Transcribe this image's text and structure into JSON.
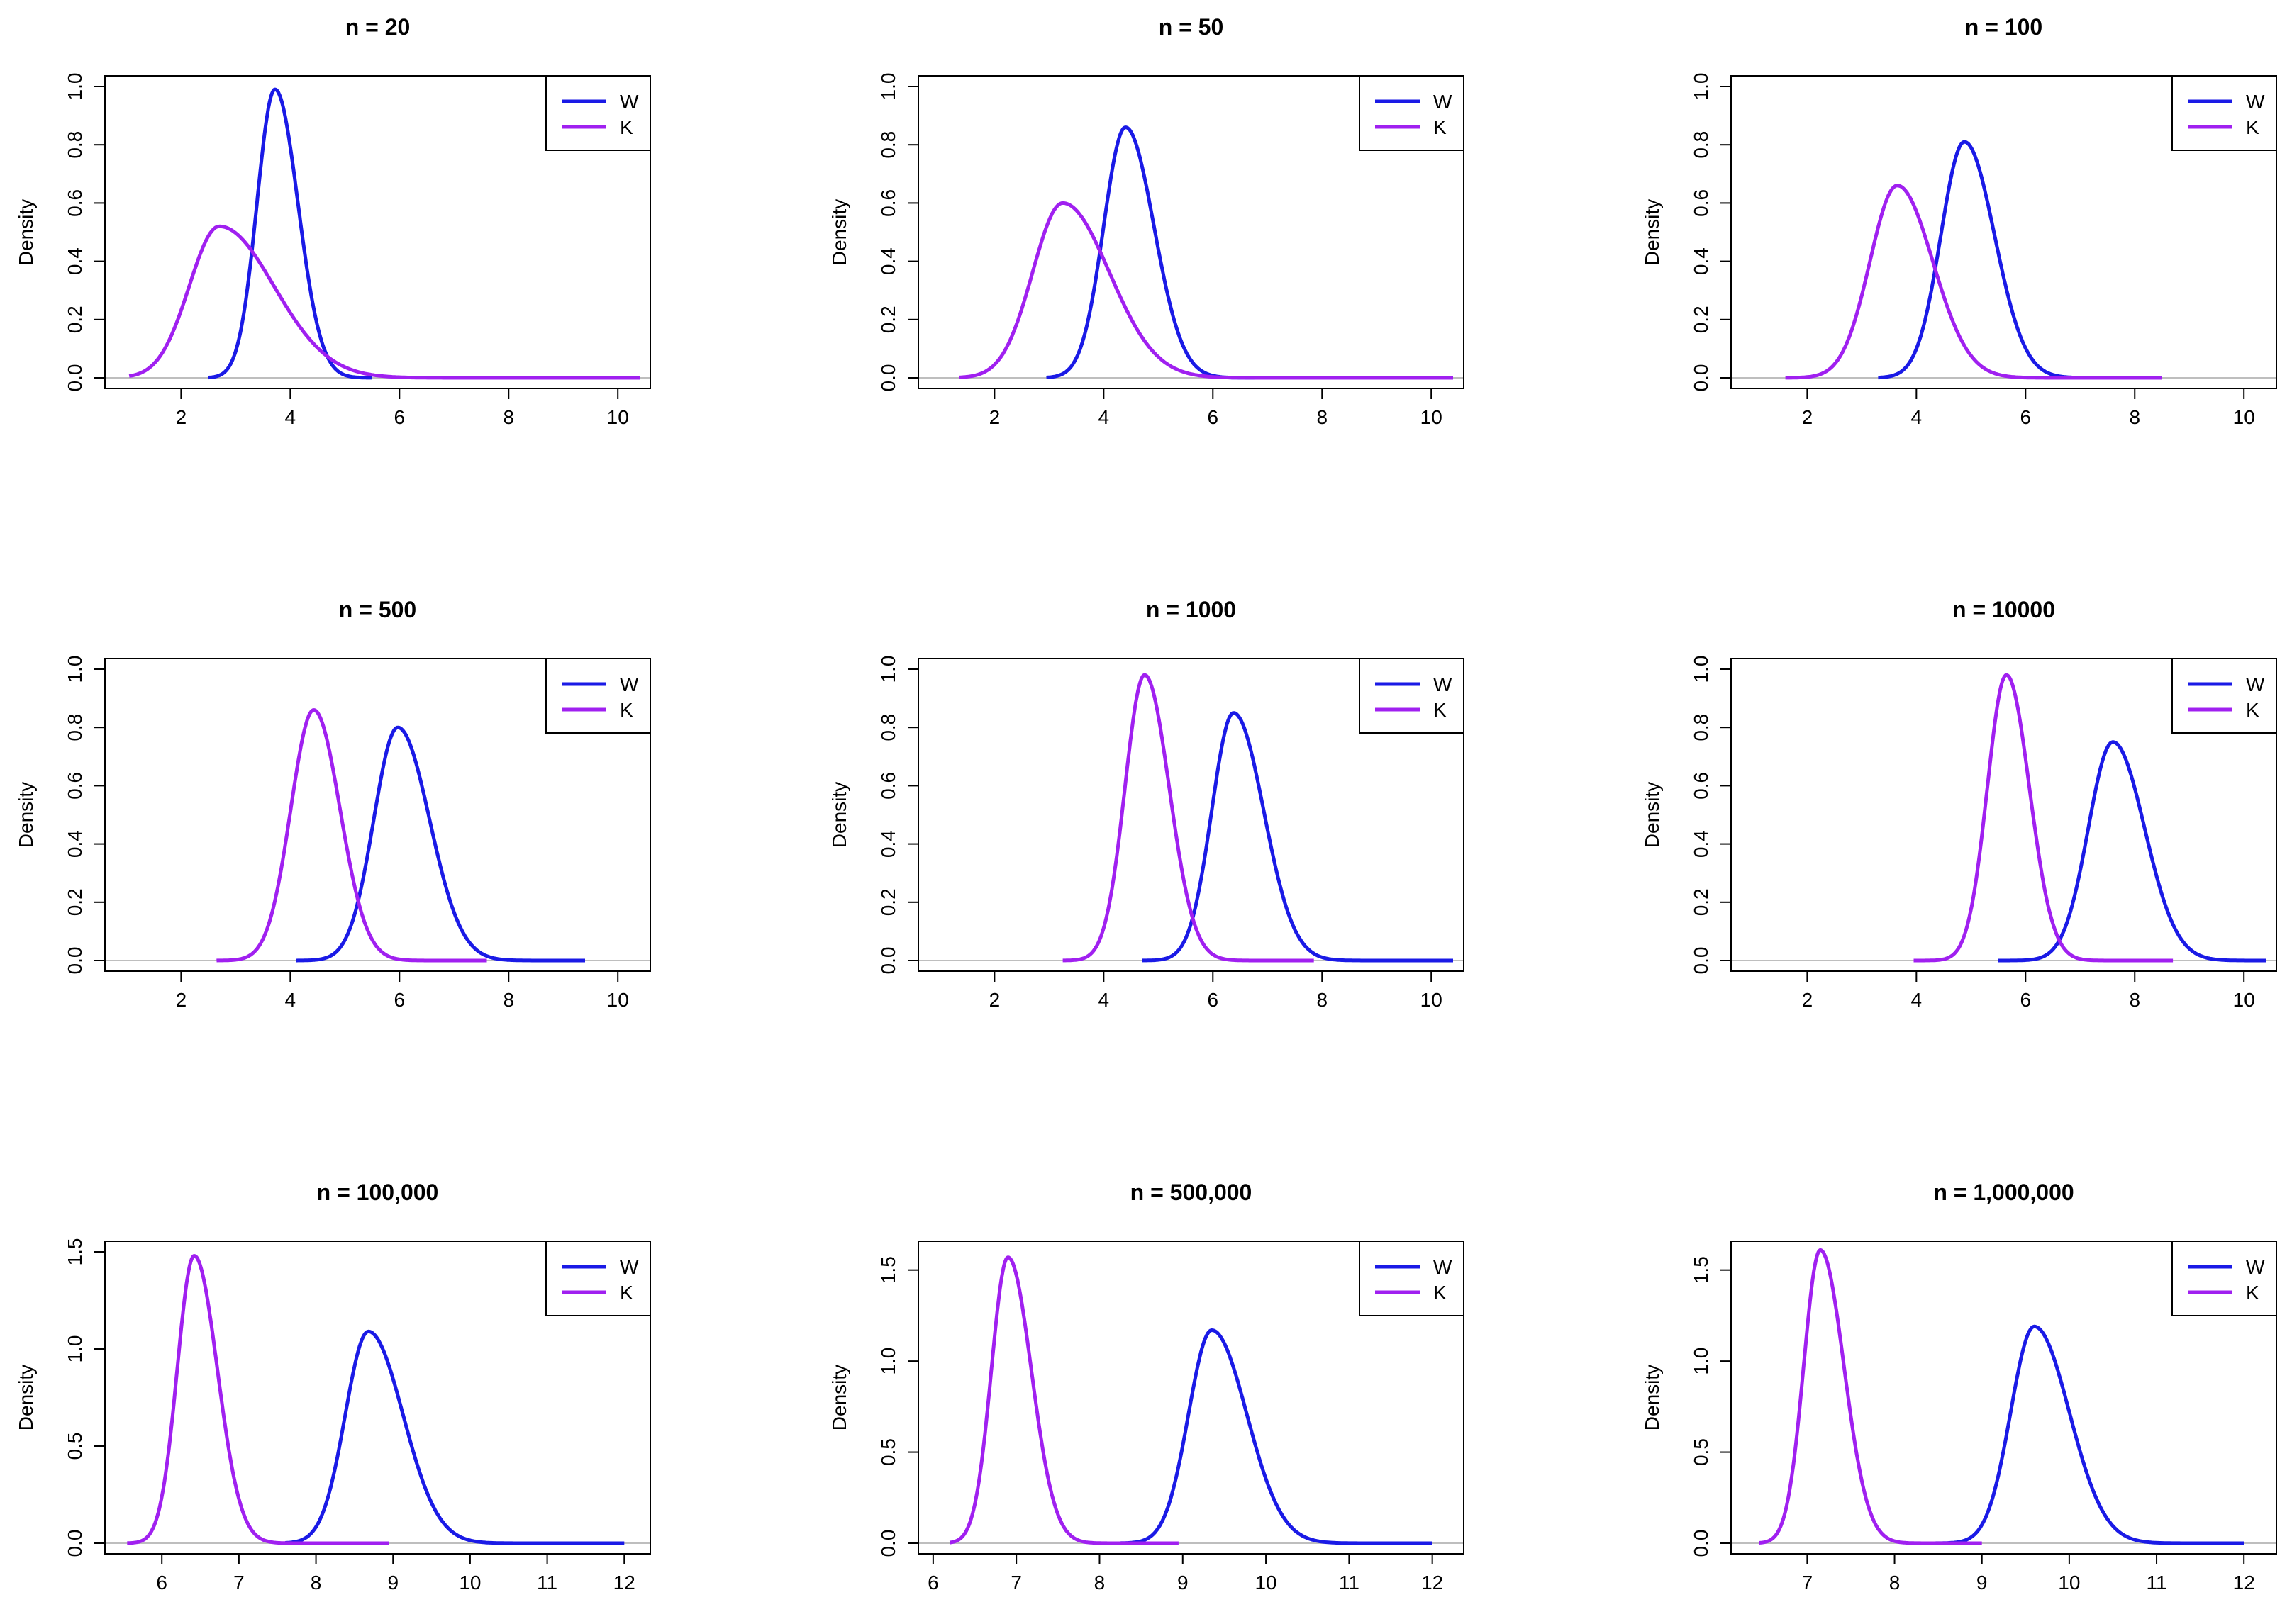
{
  "figure": {
    "ylabel": "Density",
    "colors": {
      "W": "#1a1ae6",
      "K": "#a020f0",
      "zero_line": "#bebebe",
      "axis": "#000000"
    }
  },
  "chart_data": [
    {
      "type": "line",
      "title": "n = 20",
      "xlabel": "",
      "ylabel": "Density",
      "xlim": [
        0.8,
        10.4
      ],
      "ylim": [
        0,
        1.0
      ],
      "xticks": [
        2,
        4,
        6,
        8,
        10
      ],
      "yticks": [
        0.0,
        0.2,
        0.4,
        0.6,
        0.8,
        1.0
      ],
      "ytick_labels": [
        "0.0",
        "0.2",
        "0.4",
        "0.6",
        "0.8",
        "1.0"
      ],
      "legend": {
        "position": "top-right",
        "entries": [
          "W",
          "K"
        ]
      },
      "series": [
        {
          "name": "W",
          "mode": "skew",
          "peak_x": 3.72,
          "peak_y": 0.99,
          "sd_left": 0.33,
          "sd_right": 0.42,
          "range": [
            2.5,
            5.5
          ]
        },
        {
          "name": "K",
          "mode": "skew",
          "peak_x": 2.7,
          "peak_y": 0.52,
          "sd_left": 0.55,
          "sd_right": 1.0,
          "range": [
            1.05,
            10.4
          ]
        }
      ]
    },
    {
      "type": "line",
      "title": "n = 50",
      "xlabel": "",
      "ylabel": "Density",
      "xlim": [
        0.8,
        10.4
      ],
      "ylim": [
        0,
        1.0
      ],
      "xticks": [
        2,
        4,
        6,
        8,
        10
      ],
      "yticks": [
        0.0,
        0.2,
        0.4,
        0.6,
        0.8,
        1.0
      ],
      "ytick_labels": [
        "0.0",
        "0.2",
        "0.4",
        "0.6",
        "0.8",
        "1.0"
      ],
      "legend": {
        "position": "top-right",
        "entries": [
          "W",
          "K"
        ]
      },
      "series": [
        {
          "name": "W",
          "mode": "skew",
          "peak_x": 4.4,
          "peak_y": 0.86,
          "sd_left": 0.4,
          "sd_right": 0.52,
          "range": [
            2.95,
            7.3
          ]
        },
        {
          "name": "K",
          "mode": "skew",
          "peak_x": 3.25,
          "peak_y": 0.6,
          "sd_left": 0.55,
          "sd_right": 0.85,
          "range": [
            1.35,
            10.4
          ]
        }
      ]
    },
    {
      "type": "line",
      "title": "n = 100",
      "xlabel": "",
      "ylabel": "Density",
      "xlim": [
        0.8,
        10.4
      ],
      "ylim": [
        0,
        1.0
      ],
      "xticks": [
        2,
        4,
        6,
        8,
        10
      ],
      "yticks": [
        0.0,
        0.2,
        0.4,
        0.6,
        0.8,
        1.0
      ],
      "ytick_labels": [
        "0.0",
        "0.2",
        "0.4",
        "0.6",
        "0.8",
        "1.0"
      ],
      "legend": {
        "position": "top-right",
        "entries": [
          "W",
          "K"
        ]
      },
      "series": [
        {
          "name": "W",
          "mode": "skew",
          "peak_x": 4.88,
          "peak_y": 0.81,
          "sd_left": 0.43,
          "sd_right": 0.55,
          "range": [
            3.3,
            7.6
          ]
        },
        {
          "name": "K",
          "mode": "skew",
          "peak_x": 3.65,
          "peak_y": 0.66,
          "sd_left": 0.5,
          "sd_right": 0.65,
          "range": [
            1.6,
            8.5
          ]
        }
      ]
    },
    {
      "type": "line",
      "title": "n = 500",
      "xlabel": "",
      "ylabel": "Density",
      "xlim": [
        0.8,
        10.4
      ],
      "ylim": [
        0,
        1.0
      ],
      "xticks": [
        2,
        4,
        6,
        8,
        10
      ],
      "yticks": [
        0.0,
        0.2,
        0.4,
        0.6,
        0.8,
        1.0
      ],
      "ytick_labels": [
        "0.0",
        "0.2",
        "0.4",
        "0.6",
        "0.8",
        "1.0"
      ],
      "legend": {
        "position": "top-right",
        "entries": [
          "W",
          "K"
        ]
      },
      "series": [
        {
          "name": "W",
          "mode": "skew",
          "peak_x": 5.97,
          "peak_y": 0.8,
          "sd_left": 0.44,
          "sd_right": 0.58,
          "range": [
            4.1,
            9.4
          ]
        },
        {
          "name": "K",
          "mode": "skew",
          "peak_x": 4.43,
          "peak_y": 0.86,
          "sd_left": 0.42,
          "sd_right": 0.48,
          "range": [
            2.65,
            7.6
          ]
        }
      ]
    },
    {
      "type": "line",
      "title": "n = 1000",
      "xlabel": "",
      "ylabel": "Density",
      "xlim": [
        0.8,
        10.4
      ],
      "ylim": [
        0,
        1.0
      ],
      "xticks": [
        2,
        4,
        6,
        8,
        10
      ],
      "yticks": [
        0.0,
        0.2,
        0.4,
        0.6,
        0.8,
        1.0
      ],
      "ytick_labels": [
        "0.0",
        "0.2",
        "0.4",
        "0.6",
        "0.8",
        "1.0"
      ],
      "legend": {
        "position": "top-right",
        "entries": [
          "W",
          "K"
        ]
      },
      "series": [
        {
          "name": "W",
          "mode": "skew",
          "peak_x": 6.38,
          "peak_y": 0.85,
          "sd_left": 0.4,
          "sd_right": 0.55,
          "range": [
            4.7,
            10.4
          ]
        },
        {
          "name": "K",
          "mode": "skew",
          "peak_x": 4.75,
          "peak_y": 0.98,
          "sd_left": 0.36,
          "sd_right": 0.45,
          "range": [
            3.25,
            7.85
          ]
        }
      ]
    },
    {
      "type": "line",
      "title": "n = 10000",
      "xlabel": "",
      "ylabel": "Density",
      "xlim": [
        0.8,
        10.4
      ],
      "ylim": [
        0,
        1.0
      ],
      "xticks": [
        2,
        4,
        6,
        8,
        10
      ],
      "yticks": [
        0.0,
        0.2,
        0.4,
        0.6,
        0.8,
        1.0
      ],
      "ytick_labels": [
        "0.0",
        "0.2",
        "0.4",
        "0.6",
        "0.8",
        "1.0"
      ],
      "legend": {
        "position": "top-right",
        "entries": [
          "W",
          "K"
        ]
      },
      "series": [
        {
          "name": "W",
          "mode": "skew",
          "peak_x": 7.6,
          "peak_y": 0.75,
          "sd_left": 0.45,
          "sd_right": 0.58,
          "range": [
            5.5,
            10.4
          ]
        },
        {
          "name": "K",
          "mode": "skew",
          "peak_x": 5.65,
          "peak_y": 0.98,
          "sd_left": 0.35,
          "sd_right": 0.42,
          "range": [
            3.95,
            8.7
          ]
        }
      ]
    },
    {
      "type": "line",
      "title": "n = 100,000",
      "xlabel": "",
      "ylabel": "Density",
      "xlim": [
        5.4,
        12.2
      ],
      "ylim": [
        0,
        1.5
      ],
      "xticks": [
        6,
        7,
        8,
        9,
        10,
        11,
        12
      ],
      "yticks": [
        0.0,
        0.5,
        1.0,
        1.5
      ],
      "ytick_labels": [
        "0.0",
        "0.5",
        "1.0",
        "1.5"
      ],
      "legend": {
        "position": "top-right",
        "entries": [
          "W",
          "K"
        ]
      },
      "series": [
        {
          "name": "W",
          "mode": "skew",
          "peak_x": 8.68,
          "peak_y": 1.09,
          "sd_left": 0.3,
          "sd_right": 0.45,
          "range": [
            7.6,
            12.0
          ]
        },
        {
          "name": "K",
          "mode": "skew",
          "peak_x": 6.42,
          "peak_y": 1.48,
          "sd_left": 0.22,
          "sd_right": 0.3,
          "range": [
            5.55,
            8.95
          ]
        }
      ]
    },
    {
      "type": "line",
      "title": "n = 500,000",
      "xlabel": "",
      "ylabel": "Density",
      "xlim": [
        5.95,
        12.25
      ],
      "ylim": [
        0,
        1.6
      ],
      "xticks": [
        6,
        7,
        8,
        9,
        10,
        11,
        12
      ],
      "yticks": [
        0.0,
        0.5,
        1.0,
        1.5
      ],
      "ytick_labels": [
        "0.0",
        "0.5",
        "1.0",
        "1.5"
      ],
      "legend": {
        "position": "top-right",
        "entries": [
          "W",
          "K"
        ]
      },
      "series": [
        {
          "name": "W",
          "mode": "skew",
          "peak_x": 9.35,
          "peak_y": 1.17,
          "sd_left": 0.28,
          "sd_right": 0.42,
          "range": [
            8.25,
            12.0
          ]
        },
        {
          "name": "K",
          "mode": "skew",
          "peak_x": 6.9,
          "peak_y": 1.57,
          "sd_left": 0.2,
          "sd_right": 0.28,
          "range": [
            6.2,
            8.95
          ]
        }
      ]
    },
    {
      "type": "line",
      "title": "n = 1,000,000",
      "xlabel": "",
      "ylabel": "Density",
      "xlim": [
        6.25,
        12.25
      ],
      "ylim": [
        0,
        1.6
      ],
      "xticks": [
        7,
        8,
        9,
        10,
        11,
        12
      ],
      "yticks": [
        0.0,
        0.5,
        1.0,
        1.5
      ],
      "ytick_labels": [
        "0.0",
        "0.5",
        "1.0",
        "1.5"
      ],
      "legend": {
        "position": "top-right",
        "entries": [
          "W",
          "K"
        ]
      },
      "series": [
        {
          "name": "W",
          "mode": "skew",
          "peak_x": 9.6,
          "peak_y": 1.19,
          "sd_left": 0.27,
          "sd_right": 0.4,
          "range": [
            8.45,
            12.0
          ]
        },
        {
          "name": "K",
          "mode": "skew",
          "peak_x": 7.15,
          "peak_y": 1.61,
          "sd_left": 0.19,
          "sd_right": 0.27,
          "range": [
            6.45,
            9.0
          ]
        }
      ]
    }
  ]
}
